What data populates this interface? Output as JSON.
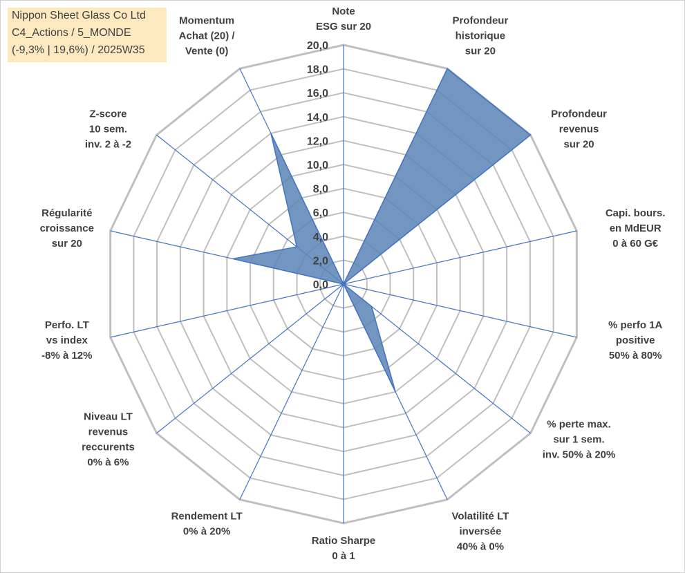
{
  "title_lines": [
    "Nippon Sheet Glass Co Ltd",
    "C4_Actions / 5_MONDE",
    "(-9,3% | 19,6%) / 2025W35"
  ],
  "colors": {
    "title_bg": "#fde9c0",
    "grid": "#bfbfbf",
    "spoke": "#4472c4",
    "fill": "#5b84b5",
    "text": "#404040"
  },
  "chart_data": {
    "type": "radar",
    "range": [
      0,
      20
    ],
    "grid": true,
    "tick_labels": [
      "0,0",
      "2,0",
      "4,0",
      "6,0",
      "8,0",
      "10,0",
      "12,0",
      "14,0",
      "16,0",
      "18,0",
      "20,0"
    ],
    "axes": [
      {
        "label": [
          "Note",
          "ESG sur 20"
        ],
        "value": 0
      },
      {
        "label": [
          "Profondeur",
          "historique",
          "sur 20"
        ],
        "value": 20
      },
      {
        "label": [
          "Profondeur",
          "revenus",
          "sur 20"
        ],
        "value": 20
      },
      {
        "label": [
          "Capi. bours.",
          "en MdEUR",
          "0 à 60 G€"
        ],
        "value": 0
      },
      {
        "label": [
          "% perfo 1A",
          "positive",
          "50% à 80%"
        ],
        "value": 0
      },
      {
        "label": [
          "% perte max.",
          "sur 1 sem.",
          "inv. 50% à 20%"
        ],
        "value": 3
      },
      {
        "label": [
          "Volatilité LT",
          "inversée",
          "40% à 0%"
        ],
        "value": 10
      },
      {
        "label": [
          "Ratio Sharpe",
          "0 à 1"
        ],
        "value": 0
      },
      {
        "label": [
          "Rendement LT",
          "0% à 20%"
        ],
        "value": 0
      },
      {
        "label": [
          "Niveau LT",
          "revenus",
          "reccurents",
          "0% à 6%"
        ],
        "value": 0
      },
      {
        "label": [
          "Perfo. LT",
          "vs index",
          "-8% à 12%"
        ],
        "value": 0
      },
      {
        "label": [
          "Régularité",
          "croissance",
          "sur 20"
        ],
        "value": 9.5
      },
      {
        "label": [
          "Z-score",
          "10 sem.",
          "inv. 2 à -2"
        ],
        "value": 5
      },
      {
        "label": [
          "Momentum",
          "Achat (20) /",
          "Vente (0)"
        ],
        "value": 14
      }
    ]
  }
}
